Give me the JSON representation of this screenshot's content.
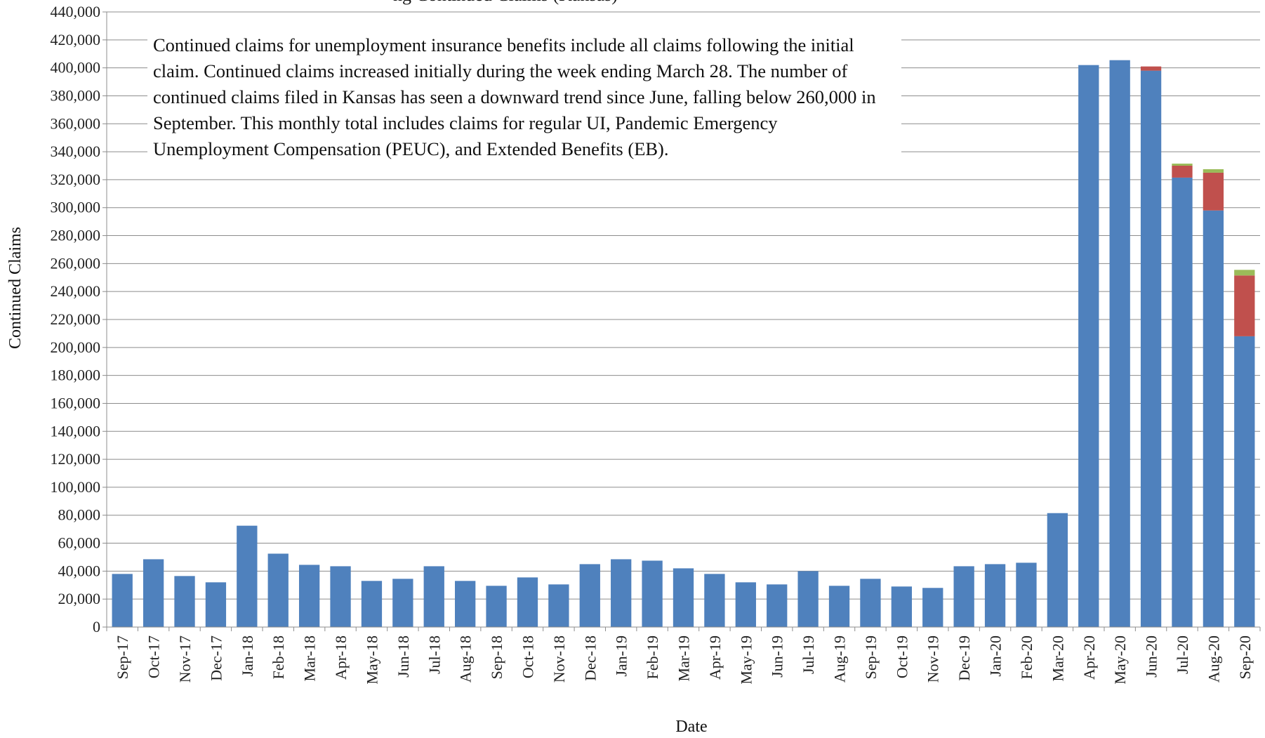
{
  "chart_data": {
    "type": "bar",
    "stacked": true,
    "title_fragment": "ng Continued Claims (Kansas)",
    "xlabel": "Date",
    "ylabel": "Continued Claims",
    "ylim": [
      0,
      440000
    ],
    "y_ticks": [
      "0",
      "20,000",
      "40,000",
      "60,000",
      "80,000",
      "100,000",
      "120,000",
      "140,000",
      "160,000",
      "180,000",
      "200,000",
      "220,000",
      "240,000",
      "260,000",
      "280,000",
      "300,000",
      "320,000",
      "340,000",
      "360,000",
      "380,000",
      "400,000",
      "420,000",
      "440,000"
    ],
    "grid": true,
    "categories": [
      "Sep-17",
      "Oct-17",
      "Nov-17",
      "Dec-17",
      "Jan-18",
      "Feb-18",
      "Mar-18",
      "Apr-18",
      "May-18",
      "Jun-18",
      "Jul-18",
      "Aug-18",
      "Sep-18",
      "Oct-18",
      "Nov-18",
      "Dec-18",
      "Jan-19",
      "Feb-19",
      "Mar-19",
      "Apr-19",
      "May-19",
      "Jun-19",
      "Jul-19",
      "Aug-19",
      "Sep-19",
      "Oct-19",
      "Nov-19",
      "Dec-19",
      "Jan-20",
      "Feb-20",
      "Mar-20",
      "Apr-20",
      "May-20",
      "Jun-20",
      "Jul-20",
      "Aug-20",
      "Sep-20"
    ],
    "series": [
      {
        "color": "#4F81BD",
        "values": [
          38000,
          48500,
          36500,
          32000,
          72500,
          52500,
          44500,
          43500,
          33000,
          34500,
          43500,
          33000,
          29500,
          35500,
          30500,
          45000,
          48500,
          47500,
          42000,
          38000,
          32000,
          30500,
          40000,
          29500,
          34500,
          29000,
          28000,
          43500,
          45000,
          46000,
          81500,
          402000,
          405500,
          398000,
          321500,
          298000,
          208000
        ]
      },
      {
        "color": "#C0504D",
        "values": [
          0,
          0,
          0,
          0,
          0,
          0,
          0,
          0,
          0,
          0,
          0,
          0,
          0,
          0,
          0,
          0,
          0,
          0,
          0,
          0,
          0,
          0,
          0,
          0,
          0,
          0,
          0,
          0,
          0,
          0,
          0,
          0,
          0,
          3000,
          8500,
          27000,
          43500
        ]
      },
      {
        "color": "#9BBB59",
        "values": [
          0,
          0,
          0,
          0,
          0,
          0,
          0,
          0,
          0,
          0,
          0,
          0,
          0,
          0,
          0,
          0,
          0,
          0,
          0,
          0,
          0,
          0,
          0,
          0,
          0,
          0,
          0,
          0,
          0,
          0,
          0,
          0,
          0,
          0,
          1500,
          2500,
          4000
        ]
      }
    ],
    "annotation": "Continued claims for unemployment insurance benefits include all claims following the initial claim. Continued claims increased initially during the week ending March 28. The number of continued claims filed in Kansas has seen a downward trend since June, falling below 260,000  in September. This monthly total includes claims for regular UI, Pandemic Emergency Unemployment Compensation (PEUC), and Extended Benefits (EB)."
  }
}
